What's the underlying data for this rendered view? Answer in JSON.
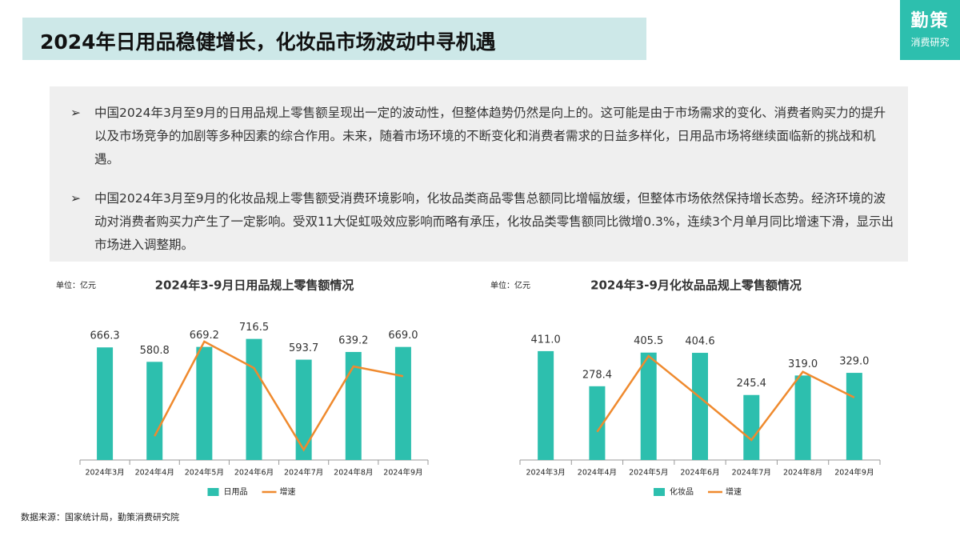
{
  "title": "2024年日用品稳健增长，化妆品市场波动中寻机遇",
  "logo": {
    "name": "勤策",
    "sub": "消费研究"
  },
  "bullets": [
    "中国2024年3月至9月的日用品规上零售额呈现出一定的波动性，但整体趋势仍然是向上的。这可能是由于市场需求的变化、消费者购买力的提升以及市场竞争的加剧等多种因素的综合作用。未来，随着市场环境的不断变化和消费者需求的日益多样化，日用品市场将继续面临新的挑战和机遇。",
    "中国2024年3月至9月的化妆品规上零售额受消费环境影响，化妆品类商品零售总额同比增幅放缓，但整体市场依然保持增长态势。经济环境的波动对消费者购买力产生了一定影响。受双11大促虹吸效应影响而略有承压，化妆品类零售额同比微增0.3%，连续3个月单月同比增速下滑，显示出市场进入调整期。"
  ],
  "source": "数据来源：国家统计局，勤策消费研究院",
  "chart_data": [
    {
      "type": "bar",
      "title": "2024年3-9月日用品规上零售额情况",
      "unit": "单位：亿元",
      "categories": [
        "2024年3月",
        "2024年4月",
        "2024年5月",
        "2024年6月",
        "2024年7月",
        "2024年8月",
        "2024年9月"
      ],
      "ylim": [
        0,
        800
      ],
      "y2lim": [
        -5,
        20
      ],
      "series": [
        {
          "name": "日用品",
          "color": "#2dbfae",
          "values": [
            666.3,
            580.8,
            669.2,
            716.5,
            593.7,
            639.2,
            669.0
          ],
          "value_labels": [
            "666.3",
            "580.8",
            "669.2",
            "716.5",
            "593.7",
            "639.2",
            "669.0"
          ]
        },
        {
          "name": "增速",
          "color": "#ef8a2e",
          "axis": "y2",
          "type": "line",
          "values": [
            null,
            -0.6,
            16.9,
            12.0,
            -3.1,
            12.3,
            10.5
          ]
        }
      ]
    },
    {
      "type": "bar",
      "title": "2024年3-9月化妆品品规上零售额情况",
      "unit": "单位：亿元",
      "categories": [
        "2024年3月",
        "2024年4月",
        "2024年5月",
        "2024年6月",
        "2024年7月",
        "2024年8月",
        "2024年9月"
      ],
      "ylim": [
        0,
        450
      ],
      "y2lim": [
        -5,
        20
      ],
      "series": [
        {
          "name": "化妆品",
          "color": "#2dbfae",
          "values": [
            411.0,
            278.4,
            405.5,
            404.6,
            245.4,
            319.0,
            329.0
          ],
          "value_labels": [
            "411.0",
            "278.4",
            "405.5",
            "404.6",
            "245.4",
            "319.0",
            "329.0"
          ]
        },
        {
          "name": "增速",
          "color": "#ef8a2e",
          "axis": "y2",
          "type": "line",
          "values": [
            null,
            0.9,
            16.8,
            8.1,
            -0.8,
            13.5,
            8.1
          ]
        }
      ]
    }
  ]
}
